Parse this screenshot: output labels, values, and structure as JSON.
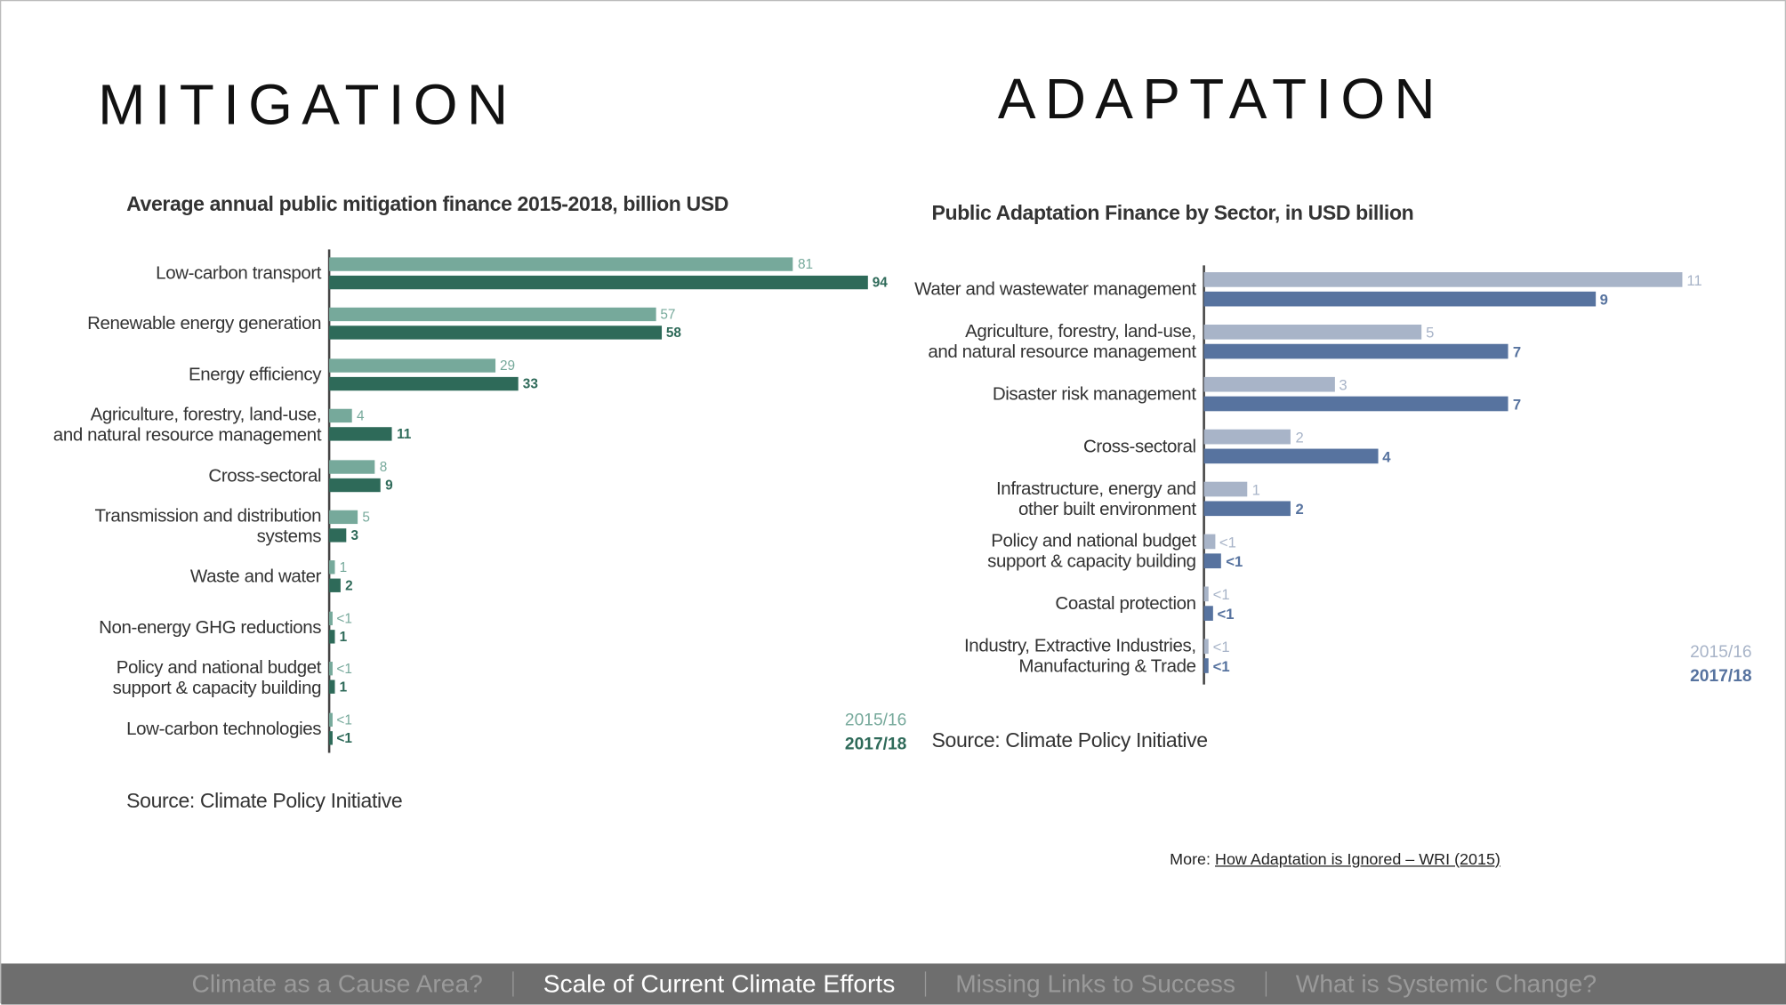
{
  "slide": {
    "headings": [
      "MITIGATION",
      "ADAPTATION"
    ],
    "more_label": "More:",
    "more_link": "How Adaptation is Ignored – WRI (2015)",
    "nav": [
      "Climate as a Cause Area?",
      "Scale of Current Climate Efforts",
      "Missing Links to Success",
      "What is Systemic Change?"
    ]
  },
  "chart_data": [
    {
      "type": "hbar",
      "title": "Average annual public mitigation finance 2015-2018, billion USD",
      "source": "Source: Climate Policy Initiative",
      "categories": [
        "Low-carbon transport",
        "Renewable energy generation",
        "Energy efficiency",
        "Agriculture, forestry, land-use,\nand natural resource management",
        "Cross-sectoral",
        "Transmission and distribution\nsystems",
        "Waste and water",
        "Non-energy GHG reductions",
        "Policy and national budget\nsupport & capacity building",
        "Low-carbon technologies"
      ],
      "xlim": [
        0,
        100
      ],
      "series": [
        {
          "name": "2015/16",
          "color": "#76a99b",
          "values": [
            81,
            57,
            29,
            4,
            8,
            5,
            1,
            0.5,
            0.5,
            0.5
          ],
          "value_labels": [
            "81",
            "57",
            "29",
            "4",
            "8",
            "5",
            "1",
            "<1",
            "<1",
            "<1"
          ]
        },
        {
          "name": "2017/18",
          "color": "#2e6a59",
          "values": [
            94,
            58,
            33,
            11,
            9,
            3,
            2,
            1,
            1,
            0.5
          ],
          "value_labels": [
            "94",
            "58",
            "33",
            "11",
            "9",
            "3",
            "2",
            "1",
            "1",
            "<1"
          ]
        }
      ]
    },
    {
      "type": "hbar",
      "title": "Public Adaptation Finance by Sector, in USD billion",
      "source": "Source: Climate Policy Initiative",
      "categories": [
        "Water and wastewater management",
        "Agriculture, forestry, land-use,\nand natural resource management",
        "Disaster risk management",
        "Cross-sectoral",
        "Infrastructure, energy and\nother built environment",
        "Policy and national budget\nsupport & capacity building",
        "Coastal protection",
        "Industry, Extractive Industries,\nManufacturing & Trade"
      ],
      "xlim": [
        0,
        12
      ],
      "series": [
        {
          "name": "2015/16",
          "color": "#a8b4c8",
          "values": [
            11,
            5,
            3,
            2,
            1,
            0.25,
            0.1,
            0.1
          ],
          "value_labels": [
            "11",
            "5",
            "3",
            "2",
            "1",
            "<1",
            "<1",
            "<1"
          ]
        },
        {
          "name": "2017/18",
          "color": "#57739f",
          "values": [
            9,
            7,
            7,
            4,
            2,
            0.4,
            0.2,
            0.1
          ],
          "value_labels": [
            "9",
            "7",
            "7",
            "4",
            "2",
            "<1",
            "<1",
            "<1"
          ]
        }
      ]
    }
  ]
}
